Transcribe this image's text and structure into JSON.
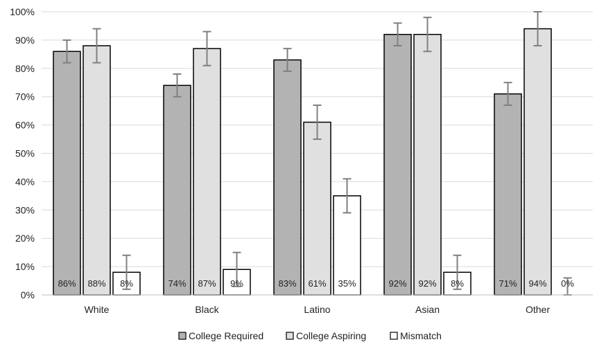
{
  "chart_data": {
    "type": "bar",
    "categories": [
      "White",
      "Black",
      "Latino",
      "Asian",
      "Other"
    ],
    "ylim": [
      0,
      100
    ],
    "yticks": [
      0,
      10,
      20,
      30,
      40,
      50,
      60,
      70,
      80,
      90,
      100
    ],
    "ytick_labels": [
      "0%",
      "10%",
      "20%",
      "30%",
      "40%",
      "50%",
      "60%",
      "70%",
      "80%",
      "90%",
      "100%"
    ],
    "grid": true,
    "legend_position": "bottom",
    "series": [
      {
        "name": "College Required",
        "color": "#b3b3b3",
        "values": [
          86,
          74,
          83,
          92,
          71
        ],
        "labels": [
          "86%",
          "74%",
          "83%",
          "92%",
          "71%"
        ],
        "error_low": [
          82,
          70,
          79,
          88,
          67
        ],
        "error_high": [
          90,
          78,
          87,
          96,
          75
        ]
      },
      {
        "name": "College Aspiring",
        "color": "#e0e0e0",
        "values": [
          88,
          87,
          61,
          92,
          94
        ],
        "labels": [
          "88%",
          "87%",
          "61%",
          "92%",
          "94%"
        ],
        "error_low": [
          82,
          81,
          55,
          86,
          88
        ],
        "error_high": [
          94,
          93,
          67,
          98,
          100
        ]
      },
      {
        "name": "Mismatch",
        "color": "#ffffff",
        "values": [
          8,
          9,
          35,
          8,
          0
        ],
        "labels": [
          "8%",
          "9%",
          "35%",
          "8%",
          "0%"
        ],
        "error_low": [
          2,
          3,
          29,
          2,
          0
        ],
        "error_high": [
          14,
          15,
          41,
          14,
          6
        ]
      }
    ]
  }
}
